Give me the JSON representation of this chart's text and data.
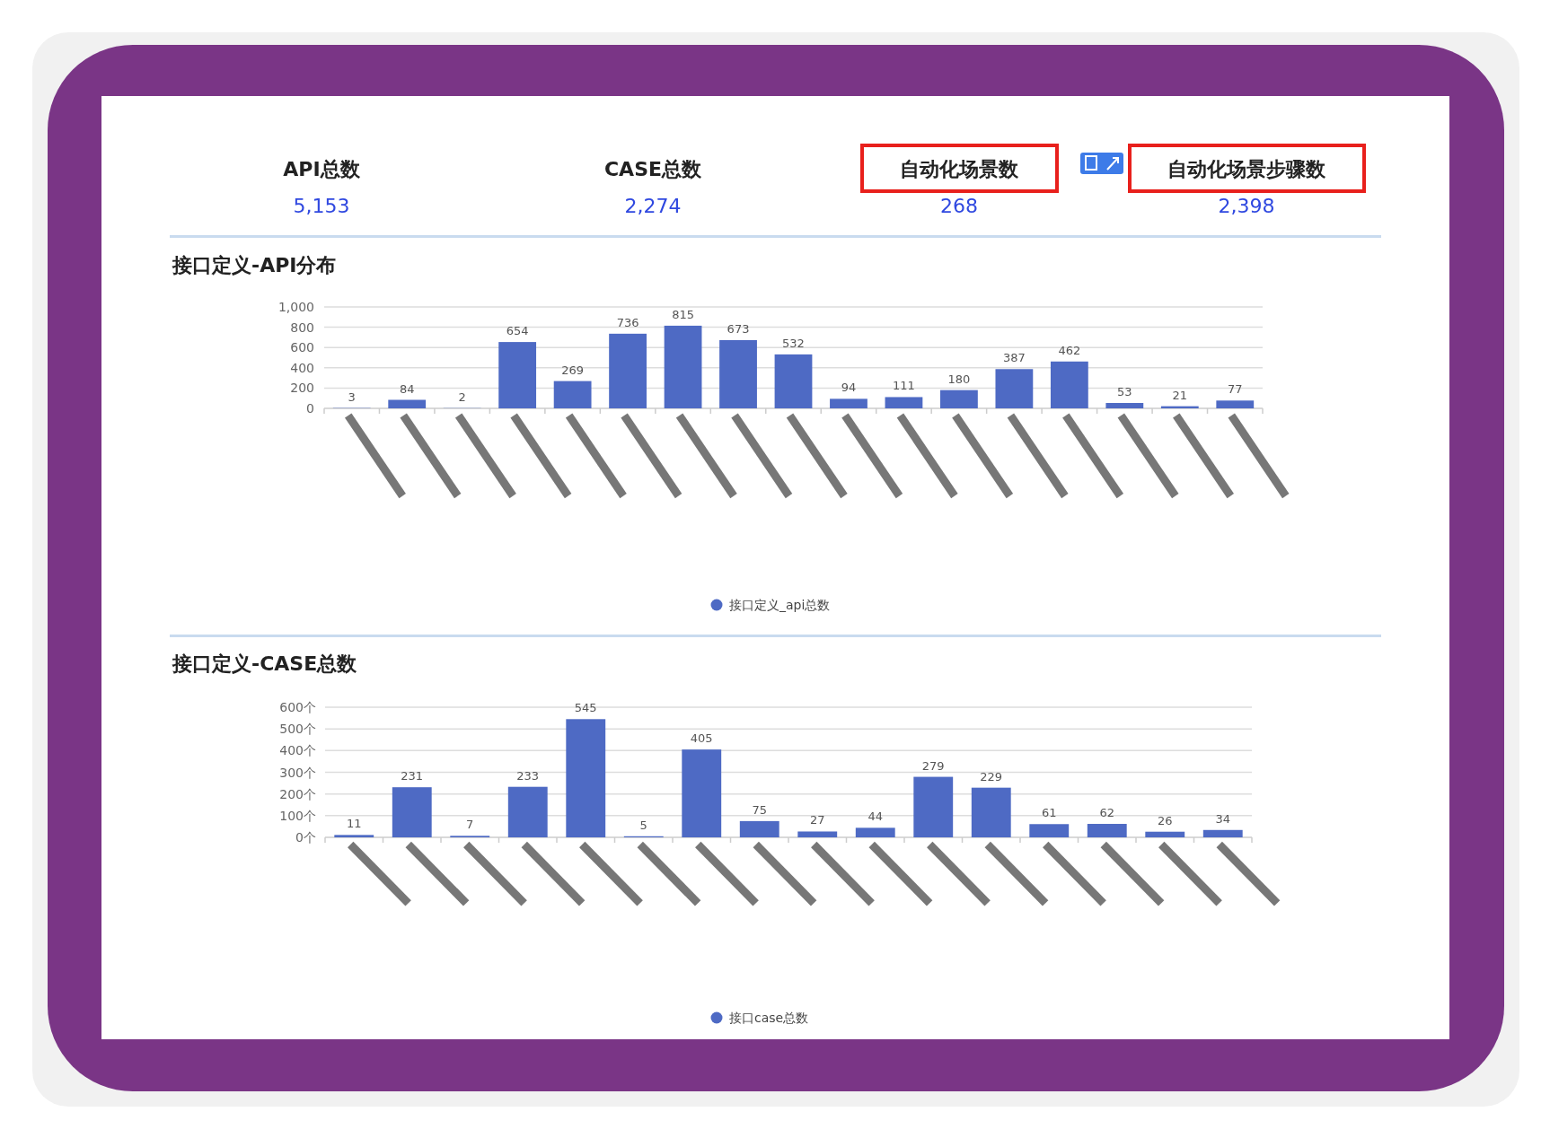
{
  "chart_data": [
    {
      "type": "other",
      "categories": [
        "API总数",
        "CASE总数",
        "自动化场景数",
        "自动化场景步骤数"
      ],
      "annotations": [
        "5,153",
        "2,274",
        "268",
        "2,398"
      ]
    },
    {
      "type": "bar",
      "title": "接口定义-API分布",
      "categories": [
        null,
        null,
        null,
        null,
        null,
        null,
        null,
        null,
        null,
        null,
        null,
        null,
        null,
        null,
        null,
        null,
        null
      ],
      "series": [
        {
          "name": "接口定义_api总数",
          "color": "#4e6ac4",
          "values": [
            3,
            84,
            2,
            654,
            269,
            736,
            815,
            673,
            532,
            94,
            111,
            180,
            387,
            462,
            53,
            21,
            77
          ]
        }
      ],
      "ylim": [
        0,
        1000
      ],
      "yticks": [
        0,
        200,
        400,
        600,
        800,
        {
          "value": 1000,
          "label": "1,000"
        }
      ],
      "grid": "y",
      "data_labels": true,
      "legend": "bottom"
    },
    {
      "type": "bar",
      "title": "接口定义-CASE总数",
      "categories": [
        null,
        null,
        null,
        null,
        null,
        null,
        null,
        null,
        null,
        null,
        null,
        null,
        null,
        null,
        null,
        null
      ],
      "series": [
        {
          "name": "接口case总数",
          "color": "#4e6ac4",
          "values": [
            11,
            231,
            7,
            233,
            545,
            5,
            405,
            75,
            27,
            44,
            279,
            229,
            61,
            62,
            26,
            34
          ]
        }
      ],
      "ylim": [
        0,
        600
      ],
      "yticks": [
        {
          "value": 0,
          "label": "0个"
        },
        {
          "value": 100,
          "label": "100个"
        },
        {
          "value": 200,
          "label": "200个"
        },
        {
          "value": 300,
          "label": "300个"
        },
        {
          "value": 400,
          "label": "400个"
        },
        {
          "value": 500,
          "label": "500个"
        },
        {
          "value": 600,
          "label": "600个"
        }
      ],
      "grid": "y",
      "data_labels": true,
      "legend": "bottom"
    }
  ]
}
